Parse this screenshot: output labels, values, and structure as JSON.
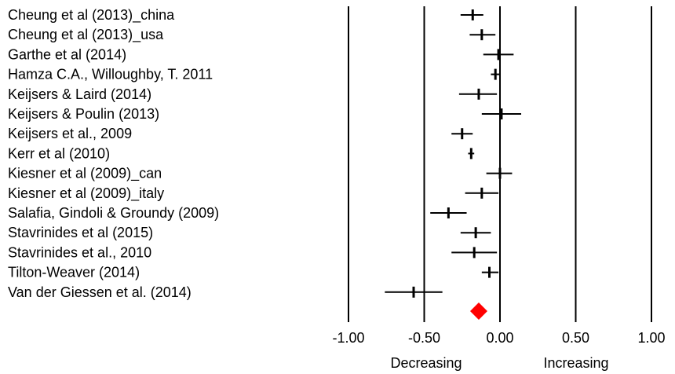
{
  "chart_data": {
    "type": "forest",
    "studies": [
      {
        "label": "Cheung et al (2013)_china",
        "estimate": -0.18,
        "ci": [
          -0.26,
          -0.11
        ]
      },
      {
        "label": "Cheung et al (2013)_usa",
        "estimate": -0.12,
        "ci": [
          -0.2,
          -0.03
        ]
      },
      {
        "label": "Garthe et al (2014)",
        "estimate": -0.01,
        "ci": [
          -0.11,
          0.09
        ]
      },
      {
        "label": "Hamza C.A., Willoughby, T. 2011",
        "estimate": -0.03,
        "ci": [
          -0.06,
          0.0
        ]
      },
      {
        "label": "Keijsers & Laird (2014)",
        "estimate": -0.14,
        "ci": [
          -0.27,
          -0.02
        ]
      },
      {
        "label": "Keijsers & Poulin (2013)",
        "estimate": 0.01,
        "ci": [
          -0.12,
          0.14
        ]
      },
      {
        "label": "Keijsers et al., 2009",
        "estimate": -0.25,
        "ci": [
          -0.32,
          -0.18
        ]
      },
      {
        "label": "Kerr et al (2010)",
        "estimate": -0.19,
        "ci": [
          -0.21,
          -0.17
        ]
      },
      {
        "label": "Kiesner et al (2009)_can",
        "estimate": 0.0,
        "ci": [
          -0.09,
          0.08
        ]
      },
      {
        "label": "Kiesner et al (2009)_italy",
        "estimate": -0.12,
        "ci": [
          -0.23,
          -0.01
        ]
      },
      {
        "label": "Salafia, Gindoli & Groundy (2009)",
        "estimate": -0.34,
        "ci": [
          -0.46,
          -0.22
        ]
      },
      {
        "label": "Stavrinides et al (2015)",
        "estimate": -0.16,
        "ci": [
          -0.26,
          -0.06
        ]
      },
      {
        "label": "Stavrinides et al., 2010",
        "estimate": -0.17,
        "ci": [
          -0.32,
          -0.02
        ]
      },
      {
        "label": "Tilton-Weaver (2014)",
        "estimate": -0.07,
        "ci": [
          -0.12,
          -0.01
        ]
      },
      {
        "label": "Van der Giessen et al. (2014)",
        "estimate": -0.57,
        "ci": [
          -0.76,
          -0.38
        ]
      }
    ],
    "summary": {
      "estimate": -0.14,
      "color": "#ff0000"
    },
    "x_ticks": [
      -1.0,
      -0.5,
      0.0,
      0.5,
      1.0
    ],
    "x_tick_labels": [
      "-1.00",
      "-0.50",
      "0.00",
      "0.50",
      "1.00"
    ],
    "xlim": [
      -1.0,
      1.0
    ],
    "reference_lines": [
      -1.0,
      -0.5,
      0.0,
      0.5,
      1.0
    ],
    "direction_labels": {
      "left": "Decreasing",
      "right": "Increasing"
    },
    "colors": {
      "marks": "#000000",
      "summary": "#ff0000"
    }
  }
}
